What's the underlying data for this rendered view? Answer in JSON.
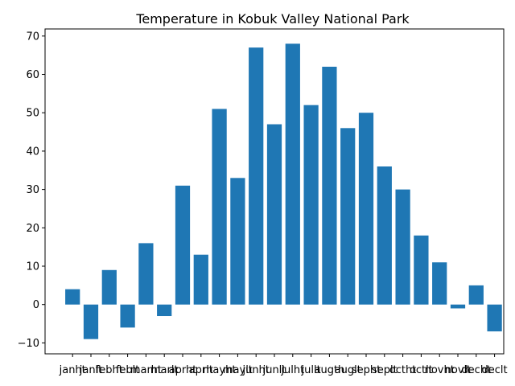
{
  "chart_data": {
    "type": "bar",
    "title": "Temperature in Kobuk Valley National Park",
    "xlabel": "",
    "ylabel": "",
    "categories": [
      "janht",
      "janlt",
      "febht",
      "feblt",
      "marht",
      "marlt",
      "aprht",
      "aprlt",
      "mayht",
      "maylt",
      "junht",
      "junlt",
      "julht",
      "jullt",
      "augth",
      "auglt",
      "sepht",
      "seplt",
      "octht",
      "octlt",
      "novht",
      "novlt",
      "decht",
      "declt"
    ],
    "values": [
      4,
      -9,
      9,
      -6,
      16,
      -3,
      31,
      13,
      51,
      33,
      67,
      47,
      68,
      52,
      62,
      46,
      50,
      36,
      30,
      18,
      11,
      -1,
      5,
      -7
    ],
    "ylim": [
      -12.85,
      71.85
    ],
    "yticks": [
      -10,
      0,
      10,
      20,
      30,
      40,
      50,
      60,
      70
    ],
    "bar_color": "#1f77b4",
    "grid": false,
    "legend": "none"
  }
}
